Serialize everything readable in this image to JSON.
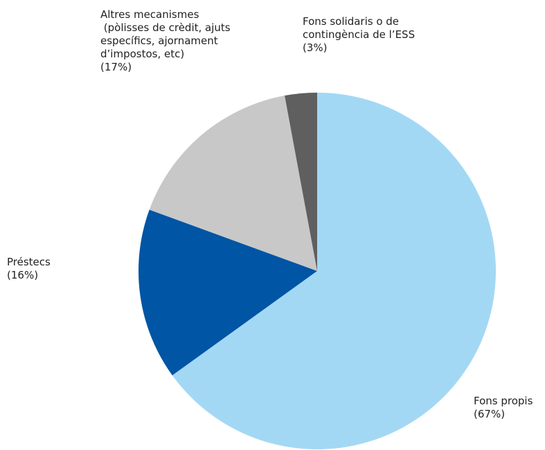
{
  "chart_data": {
    "type": "pie",
    "categories": [
      "Fons propis",
      "Préstecs",
      "Altres mecanismes\n (pòlisses de crèdit, ajuts\nespecífics, ajornament\nd’impostos, etc)",
      "Fons solidaris o de\ncontingència de l’ESS"
    ],
    "values": [
      67,
      16,
      17,
      3
    ],
    "value_labels": [
      "(67%)",
      "(16%)",
      "(17%)",
      "(3%)"
    ],
    "colors": [
      "#a3d8f5",
      "#0055a4",
      "#c8c8c8",
      "#5f5f5f"
    ]
  }
}
